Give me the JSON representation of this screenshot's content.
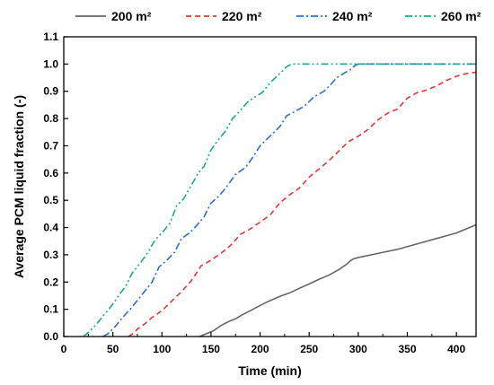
{
  "chart_data": {
    "type": "line",
    "xlabel": "Time (min)",
    "ylabel": "Average PCM liquid fraction (-)",
    "xlim": [
      0,
      420
    ],
    "ylim": [
      0,
      1.1
    ],
    "xticks": [
      "0",
      "50",
      "100",
      "150",
      "200",
      "250",
      "300",
      "350",
      "400"
    ],
    "yticks": [
      "0.0",
      "0.1",
      "0.2",
      "0.3",
      "0.4",
      "0.5",
      "0.6",
      "0.7",
      "0.8",
      "0.9",
      "1.0",
      "1.1"
    ],
    "grid": false,
    "legend_position": "top",
    "series": [
      {
        "name": "200 m²",
        "color": "#666666",
        "dash": "solid",
        "points": [
          [
            138,
            0
          ],
          [
            145,
            0.01
          ],
          [
            152,
            0.02
          ],
          [
            160,
            0.04
          ],
          [
            168,
            0.055
          ],
          [
            175,
            0.065
          ],
          [
            182,
            0.08
          ],
          [
            190,
            0.095
          ],
          [
            198,
            0.11
          ],
          [
            206,
            0.125
          ],
          [
            214,
            0.138
          ],
          [
            222,
            0.15
          ],
          [
            230,
            0.16
          ],
          [
            240,
            0.177
          ],
          [
            250,
            0.193
          ],
          [
            260,
            0.21
          ],
          [
            270,
            0.225
          ],
          [
            280,
            0.245
          ],
          [
            288,
            0.265
          ],
          [
            292,
            0.278
          ],
          [
            295,
            0.285
          ],
          [
            300,
            0.29
          ],
          [
            320,
            0.305
          ],
          [
            340,
            0.32
          ],
          [
            360,
            0.34
          ],
          [
            380,
            0.36
          ],
          [
            400,
            0.38
          ],
          [
            420,
            0.41
          ]
        ]
      },
      {
        "name": "220 m²",
        "color": "#e8343a",
        "dash": "dashed",
        "points": [
          [
            66,
            0
          ],
          [
            70,
            0.01
          ],
          [
            76,
            0.03
          ],
          [
            82,
            0.045
          ],
          [
            90,
            0.07
          ],
          [
            100,
            0.095
          ],
          [
            110,
            0.13
          ],
          [
            120,
            0.165
          ],
          [
            130,
            0.205
          ],
          [
            140,
            0.26
          ],
          [
            150,
            0.28
          ],
          [
            160,
            0.305
          ],
          [
            170,
            0.335
          ],
          [
            180,
            0.375
          ],
          [
            190,
            0.395
          ],
          [
            200,
            0.42
          ],
          [
            210,
            0.445
          ],
          [
            220,
            0.49
          ],
          [
            230,
            0.52
          ],
          [
            240,
            0.545
          ],
          [
            250,
            0.585
          ],
          [
            260,
            0.615
          ],
          [
            270,
            0.645
          ],
          [
            280,
            0.68
          ],
          [
            290,
            0.715
          ],
          [
            300,
            0.735
          ],
          [
            310,
            0.76
          ],
          [
            320,
            0.795
          ],
          [
            330,
            0.82
          ],
          [
            340,
            0.835
          ],
          [
            350,
            0.875
          ],
          [
            360,
            0.895
          ],
          [
            370,
            0.905
          ],
          [
            380,
            0.92
          ],
          [
            390,
            0.94
          ],
          [
            400,
            0.955
          ],
          [
            410,
            0.965
          ],
          [
            420,
            0.97
          ]
        ]
      },
      {
        "name": "240 m²",
        "color": "#2a6fd0",
        "dash": "dashdot",
        "points": [
          [
            40,
            0
          ],
          [
            45,
            0.01
          ],
          [
            52,
            0.035
          ],
          [
            60,
            0.07
          ],
          [
            70,
            0.11
          ],
          [
            80,
            0.155
          ],
          [
            90,
            0.2
          ],
          [
            97,
            0.255
          ],
          [
            105,
            0.28
          ],
          [
            113,
            0.31
          ],
          [
            120,
            0.36
          ],
          [
            128,
            0.38
          ],
          [
            136,
            0.41
          ],
          [
            143,
            0.44
          ],
          [
            150,
            0.49
          ],
          [
            158,
            0.515
          ],
          [
            166,
            0.55
          ],
          [
            175,
            0.595
          ],
          [
            185,
            0.62
          ],
          [
            193,
            0.66
          ],
          [
            200,
            0.7
          ],
          [
            210,
            0.735
          ],
          [
            220,
            0.77
          ],
          [
            227,
            0.81
          ],
          [
            235,
            0.825
          ],
          [
            245,
            0.845
          ],
          [
            255,
            0.88
          ],
          [
            265,
            0.9
          ],
          [
            272,
            0.925
          ],
          [
            278,
            0.95
          ],
          [
            285,
            0.965
          ],
          [
            292,
            0.98
          ],
          [
            297,
            0.995
          ],
          [
            300,
            1.0
          ],
          [
            420,
            1.0
          ]
        ]
      },
      {
        "name": "260 m²",
        "color": "#19a98c",
        "dash": "dashdotdot",
        "points": [
          [
            20,
            0
          ],
          [
            25,
            0.015
          ],
          [
            32,
            0.04
          ],
          [
            40,
            0.075
          ],
          [
            48,
            0.11
          ],
          [
            56,
            0.15
          ],
          [
            64,
            0.19
          ],
          [
            70,
            0.235
          ],
          [
            78,
            0.27
          ],
          [
            86,
            0.31
          ],
          [
            93,
            0.355
          ],
          [
            100,
            0.38
          ],
          [
            108,
            0.415
          ],
          [
            115,
            0.48
          ],
          [
            122,
            0.505
          ],
          [
            130,
            0.555
          ],
          [
            137,
            0.6
          ],
          [
            143,
            0.625
          ],
          [
            150,
            0.685
          ],
          [
            157,
            0.72
          ],
          [
            165,
            0.755
          ],
          [
            172,
            0.8
          ],
          [
            180,
            0.83
          ],
          [
            187,
            0.86
          ],
          [
            195,
            0.88
          ],
          [
            202,
            0.895
          ],
          [
            210,
            0.93
          ],
          [
            217,
            0.955
          ],
          [
            223,
            0.975
          ],
          [
            227,
            0.99
          ],
          [
            232,
            1.0
          ],
          [
            420,
            1.0
          ]
        ]
      }
    ]
  }
}
